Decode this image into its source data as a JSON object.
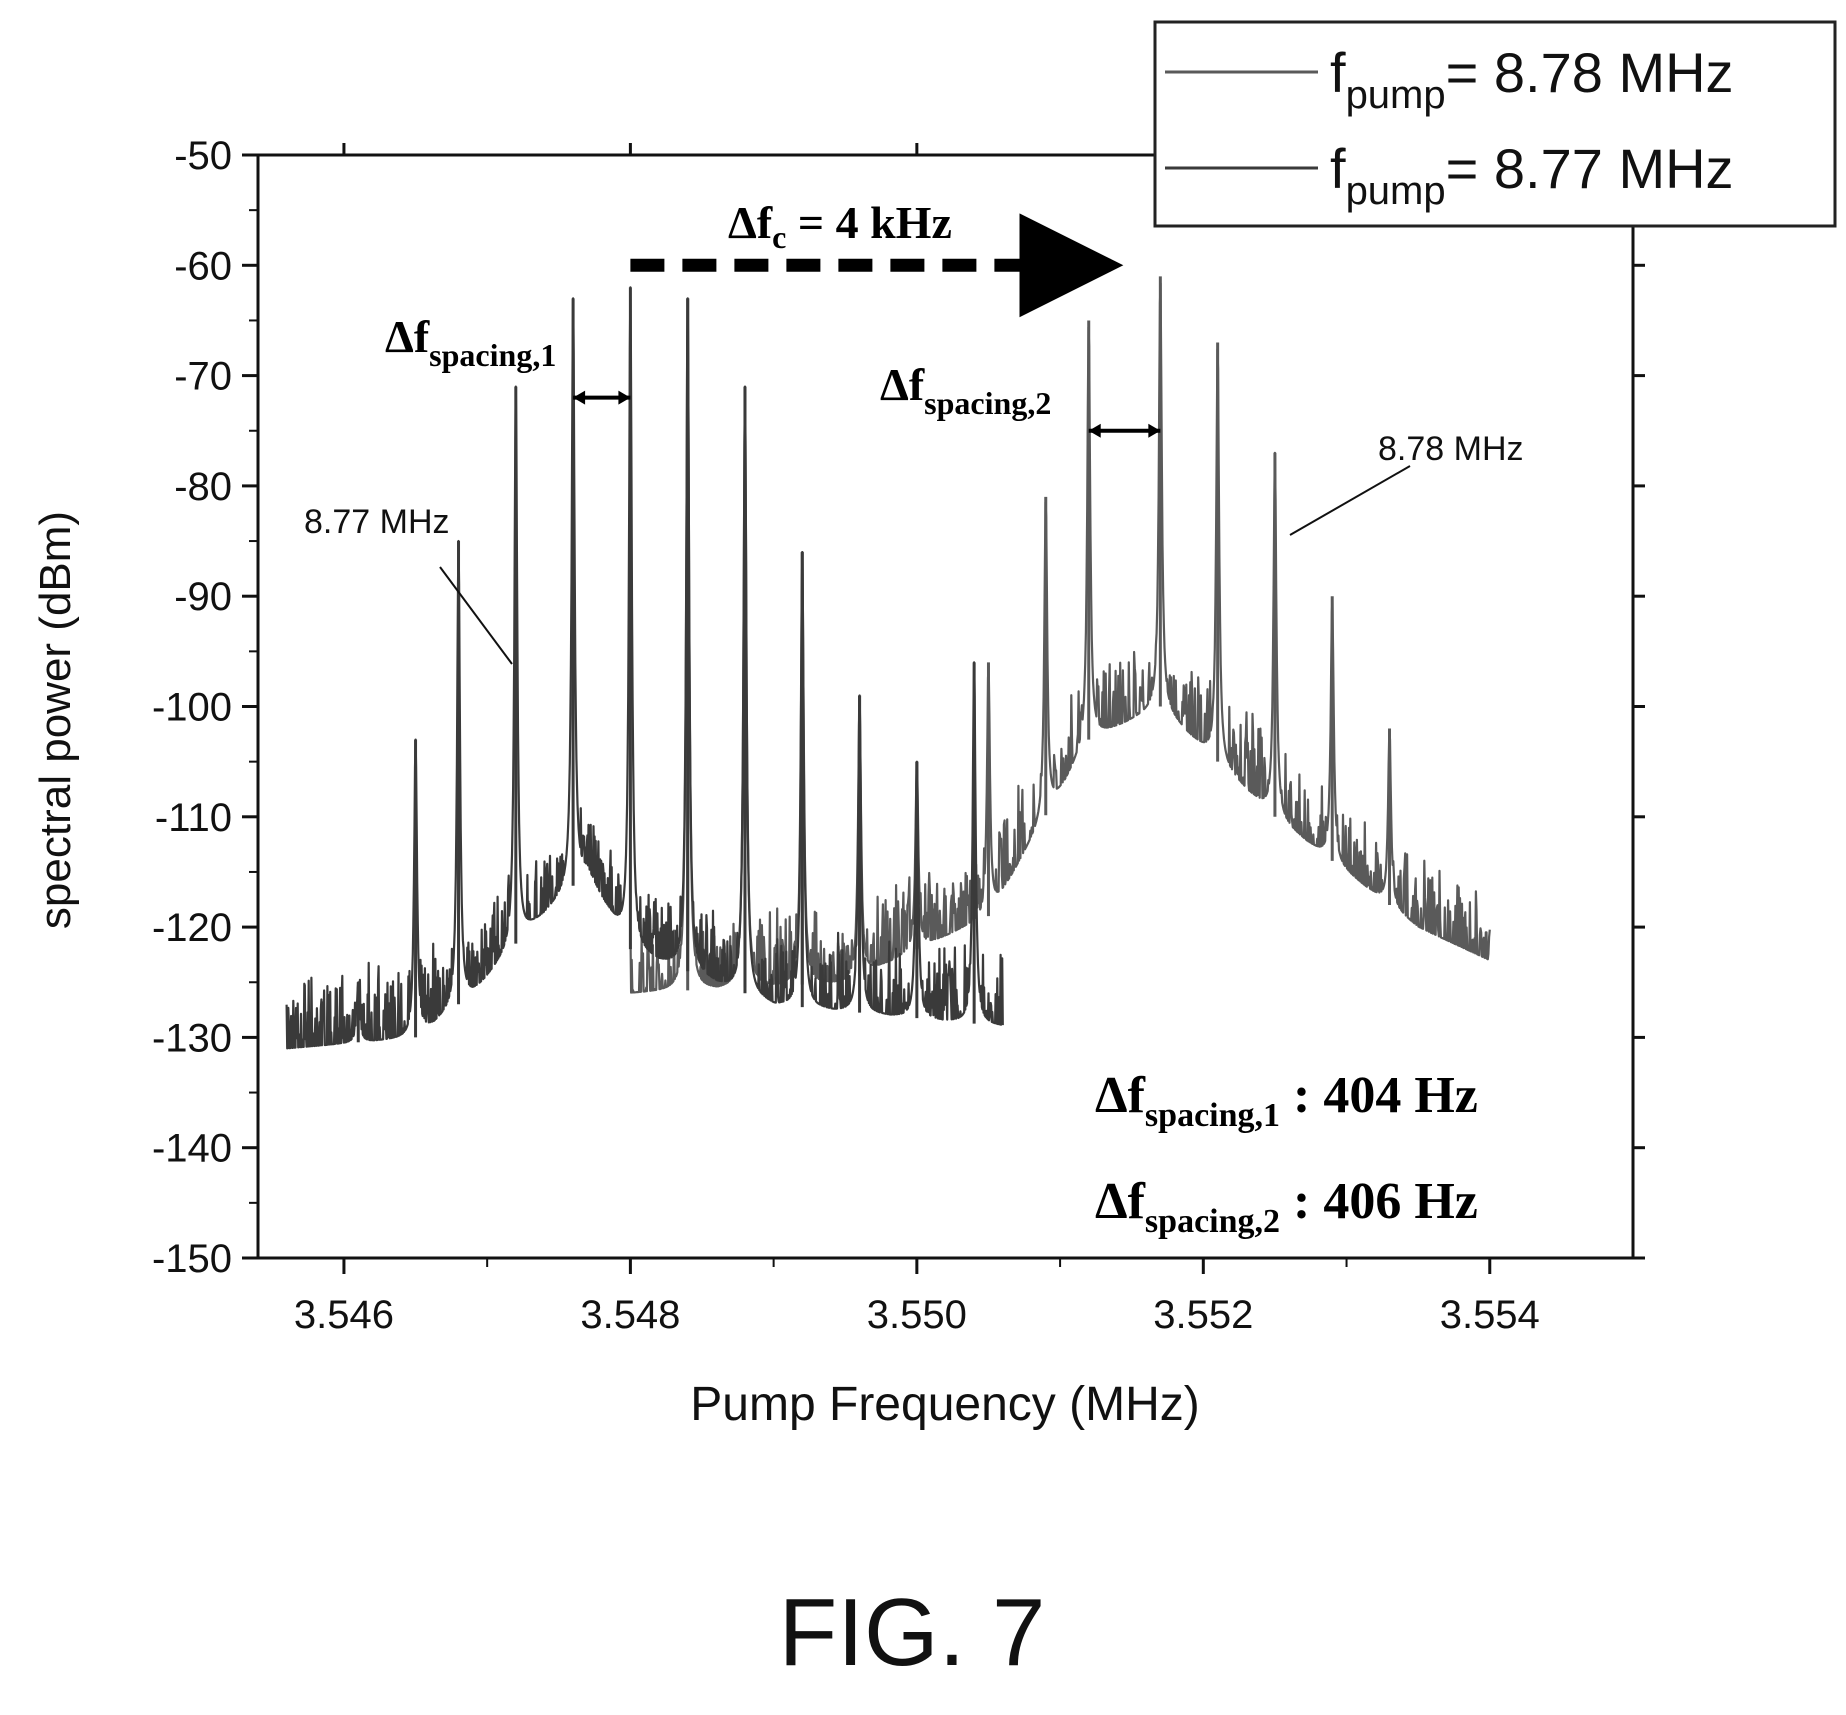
{
  "figure_label": "FIG. 7",
  "chart_data": {
    "type": "line",
    "xlabel": "Pump Frequency (MHz)",
    "ylabel": "spectral power (dBm)",
    "xlim": [
      3.5454,
      3.555
    ],
    "ylim": [
      -150,
      -50
    ],
    "x_ticks": [
      {
        "value": 3.546,
        "label": "3.546"
      },
      {
        "value": 3.548,
        "label": "3.548"
      },
      {
        "value": 3.55,
        "label": "3.550"
      },
      {
        "value": 3.552,
        "label": "3.552"
      },
      {
        "value": 3.554,
        "label": "3.554"
      }
    ],
    "y_ticks": [
      {
        "value": -50,
        "label": "-50"
      },
      {
        "value": -60,
        "label": "-60"
      },
      {
        "value": -70,
        "label": "-70"
      },
      {
        "value": -80,
        "label": "-80"
      },
      {
        "value": -90,
        "label": "-90"
      },
      {
        "value": -100,
        "label": "-100"
      },
      {
        "value": -110,
        "label": "-110"
      },
      {
        "value": -120,
        "label": "-120"
      },
      {
        "value": -130,
        "label": "-130"
      },
      {
        "value": -140,
        "label": "-140"
      },
      {
        "value": -150,
        "label": "-150"
      }
    ],
    "grid": false,
    "legend": {
      "placement": "top-right",
      "entries": [
        {
          "main": "f",
          "sub": "pump",
          "rest": "= 8.78 MHz",
          "color": "#5a5a5a"
        },
        {
          "main": "f",
          "sub": "pump",
          "rest": "= 8.77 MHz",
          "color": "#3a3a3a"
        }
      ]
    },
    "series": [
      {
        "legend_index": 0,
        "color": "#5a5a5a",
        "x_range": [
          3.548,
          3.554
        ],
        "baseline": [
          [
            3.548,
            -126
          ],
          [
            3.5495,
            -125
          ],
          [
            3.5505,
            -119
          ],
          [
            3.5512,
            -103
          ],
          [
            3.5517,
            -100
          ],
          [
            3.5525,
            -110
          ],
          [
            3.5535,
            -120
          ],
          [
            3.554,
            -123
          ]
        ],
        "peaks": [
          {
            "x": 3.5484,
            "y": -63
          },
          {
            "x": 3.5488,
            "y": -71
          },
          {
            "x": 3.5492,
            "y": -86
          },
          {
            "x": 3.5496,
            "y": -99
          },
          {
            "x": 3.55,
            "y": -105
          },
          {
            "x": 3.5505,
            "y": -96
          },
          {
            "x": 3.5509,
            "y": -81
          },
          {
            "x": 3.5512,
            "y": -65
          },
          {
            "x": 3.5517,
            "y": -61
          },
          {
            "x": 3.5521,
            "y": -67
          },
          {
            "x": 3.5525,
            "y": -77
          },
          {
            "x": 3.5529,
            "y": -90
          },
          {
            "x": 3.5533,
            "y": -102
          }
        ]
      },
      {
        "legend_index": 1,
        "color": "#3a3a3a",
        "x_range": [
          3.5456,
          3.5506
        ],
        "baseline": [
          [
            3.5456,
            -131
          ],
          [
            3.5465,
            -130
          ],
          [
            3.5469,
            -126
          ],
          [
            3.5473,
            -120
          ],
          [
            3.5477,
            -115
          ],
          [
            3.548,
            -122
          ],
          [
            3.549,
            -127
          ],
          [
            3.5506,
            -129
          ]
        ],
        "peaks": [
          {
            "x": 3.5461,
            "y": -125
          },
          {
            "x": 3.5465,
            "y": -103
          },
          {
            "x": 3.5468,
            "y": -85
          },
          {
            "x": 3.5472,
            "y": -71
          },
          {
            "x": 3.5476,
            "y": -63
          },
          {
            "x": 3.548,
            "y": -62
          },
          {
            "x": 3.5484,
            "y": -63
          },
          {
            "x": 3.5488,
            "y": -71
          },
          {
            "x": 3.5492,
            "y": -86
          },
          {
            "x": 3.5496,
            "y": -99
          },
          {
            "x": 3.55,
            "y": -105
          },
          {
            "x": 3.5504,
            "y": -96
          }
        ]
      }
    ],
    "annotations": {
      "delta_fc": {
        "prefix": "Δf",
        "sub": "c",
        "rest": " = 4 kHz",
        "x_from": 3.548,
        "x_to": 3.5517,
        "y": -60
      },
      "spacing1": {
        "prefix": "Δf",
        "sub": "spacing,1",
        "x_from": 3.5476,
        "x_to": 3.548,
        "y": -72
      },
      "spacing2": {
        "prefix": "Δf",
        "sub": "spacing,2",
        "x_from": 3.5512,
        "x_to": 3.5517,
        "y": -75
      },
      "callout_877": {
        "text": "8.77 MHz",
        "x": 3.5468,
        "y": -92
      },
      "callout_878": {
        "text": "8.78 MHz",
        "x": 3.5525,
        "y": -86
      },
      "result1": {
        "prefix": "Δf",
        "sub": "spacing,1",
        "rest": " : 404 Hz"
      },
      "result2": {
        "prefix": "Δf",
        "sub": "spacing,2",
        "rest": " : 406 Hz"
      }
    }
  }
}
